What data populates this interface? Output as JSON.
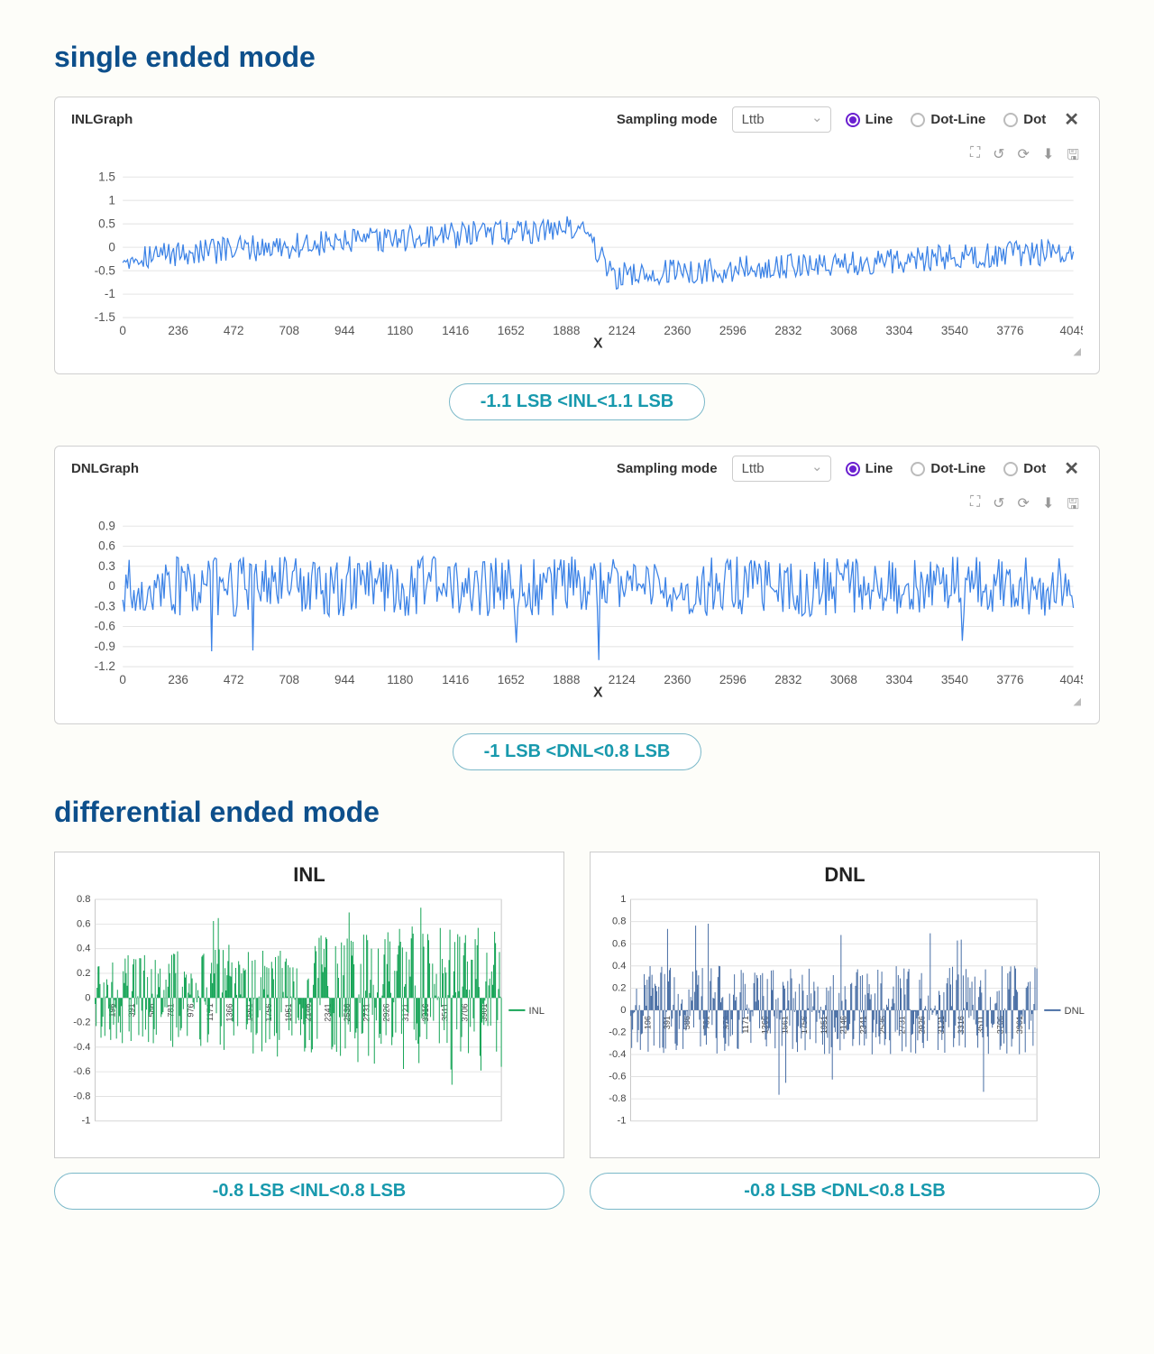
{
  "sections": {
    "single": {
      "title": "single ended mode"
    },
    "diff": {
      "title": "differential ended mode"
    }
  },
  "charts_top": [
    {
      "title": "INLGraph",
      "sampling_label": "Sampling mode",
      "sampling_value": "Lttb",
      "radios": [
        "Line",
        "Dot-Line",
        "Dot"
      ],
      "radio_selected": 0,
      "xaxis_label": "X",
      "yticks": [
        -1.5,
        -1,
        -0.5,
        0,
        0.5,
        1,
        1.5
      ],
      "ylim": [
        -1.5,
        1.5
      ],
      "xticks": [
        0,
        236,
        472,
        708,
        944,
        1180,
        1416,
        1652,
        1888,
        2124,
        2360,
        2596,
        2832,
        3068,
        3304,
        3540,
        3776,
        4045
      ],
      "xlim": [
        0,
        4045
      ],
      "line_color": "#3b82e6",
      "grid_color": "#e5e5e5",
      "pattern": "inl_step",
      "badge": "-1.1 LSB <INL<1.1 LSB"
    },
    {
      "title": "DNLGraph",
      "sampling_label": "Sampling mode",
      "sampling_value": "Lttb",
      "radios": [
        "Line",
        "Dot-Line",
        "Dot"
      ],
      "radio_selected": 0,
      "xaxis_label": "X",
      "yticks": [
        -1.2,
        -0.9,
        -0.6,
        -0.3,
        0,
        0.3,
        0.6,
        0.9
      ],
      "ylim": [
        -1.2,
        0.9
      ],
      "xticks": [
        0,
        236,
        472,
        708,
        944,
        1180,
        1416,
        1652,
        1888,
        2124,
        2360,
        2596,
        2832,
        3068,
        3304,
        3540,
        3776,
        4045
      ],
      "xlim": [
        0,
        4045
      ],
      "line_color": "#3b82e6",
      "grid_color": "#e5e5e5",
      "pattern": "dnl_noise",
      "badge": "-1 LSB <DNL<0.8 LSB"
    }
  ],
  "charts_diff": [
    {
      "title": "INL",
      "yticks": [
        -1,
        -0.8,
        -0.6,
        -0.4,
        -0.2,
        0,
        0.2,
        0.4,
        0.6,
        0.8
      ],
      "ylim": [
        -1,
        0.8
      ],
      "xticks": [
        196,
        391,
        586,
        781,
        976,
        1171,
        1366,
        1561,
        1756,
        1951,
        2146,
        2341,
        2536,
        2731,
        2926,
        3121,
        3316,
        3511,
        3706,
        3901
      ],
      "xlim": [
        0,
        4045
      ],
      "bar_color": "#18a558",
      "legend": "INL",
      "pattern": "diff_inl",
      "badge": "-0.8 LSB <INL<0.8 LSB"
    },
    {
      "title": "DNL",
      "yticks": [
        -1,
        -0.8,
        -0.6,
        -0.4,
        -0.2,
        0,
        0.2,
        0.4,
        0.6,
        0.8,
        1
      ],
      "ylim": [
        -1,
        1
      ],
      "xticks": [
        196,
        391,
        586,
        781,
        976,
        1171,
        1366,
        1561,
        1756,
        1951,
        2146,
        2341,
        2536,
        2731,
        2926,
        3121,
        3316,
        3511,
        3706,
        3901
      ],
      "xlim": [
        0,
        4045
      ],
      "bar_color": "#4a6fa5",
      "legend": "DNL",
      "pattern": "diff_dnl",
      "badge": "-0.8 LSB <DNL<0.8 LSB"
    }
  ],
  "toolbar_icons": [
    "crop-icon",
    "undo-icon",
    "refresh-icon",
    "download-icon",
    "save-icon"
  ],
  "colors": {
    "title": "#0d4f8b",
    "badge_text": "#1899ad",
    "badge_border": "#7ab8c9",
    "radio_accent": "#6a1fd0"
  }
}
